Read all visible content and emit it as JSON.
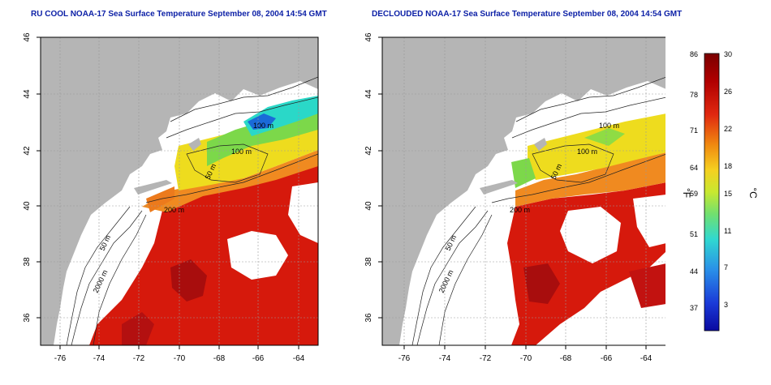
{
  "titles": {
    "left": "RU COOL NOAA-17 Sea Surface Temperature September 08, 2004 14:54 GMT",
    "right": "DECLOUDED NOAA-17 Sea Surface Temperature September 08, 2004 14:54 GMT"
  },
  "axes": {
    "x_ticks": [
      "-76",
      "-74",
      "-72",
      "-70",
      "-68",
      "-66",
      "-64"
    ],
    "y_ticks": [
      "46",
      "44",
      "42",
      "40",
      "38",
      "36"
    ],
    "grid": true,
    "lon_range": [
      -77,
      -63
    ],
    "lat_range": [
      35,
      46
    ]
  },
  "contour_labels": {
    "left": [
      "100 m",
      "100 m",
      "50 m",
      "200 m",
      "50 m",
      "2000 m"
    ],
    "right": [
      "100 m",
      "100 m",
      "50 m",
      "200 m",
      "50 m",
      "2000 m"
    ]
  },
  "colorbar": {
    "fahrenheit_unit": "°F",
    "celsius_unit": "°C",
    "fahrenheit_ticks": [
      "86",
      "78",
      "71",
      "64",
      "59",
      "51",
      "44",
      "37"
    ],
    "celsius_ticks": [
      "30",
      "26",
      "22",
      "18",
      "15",
      "11",
      "7",
      "3"
    ]
  },
  "colors": {
    "land": "#b5b5b5",
    "ocean_no_data": "#ffffff",
    "title": "#0b1fa6",
    "warm": "#d11a0c",
    "hot": "#9e0a0a",
    "orange": "#f08a20",
    "yellow": "#eedc1e",
    "green": "#7cd84a",
    "cyan": "#2ad8c8",
    "blue": "#1a6ad8"
  }
}
